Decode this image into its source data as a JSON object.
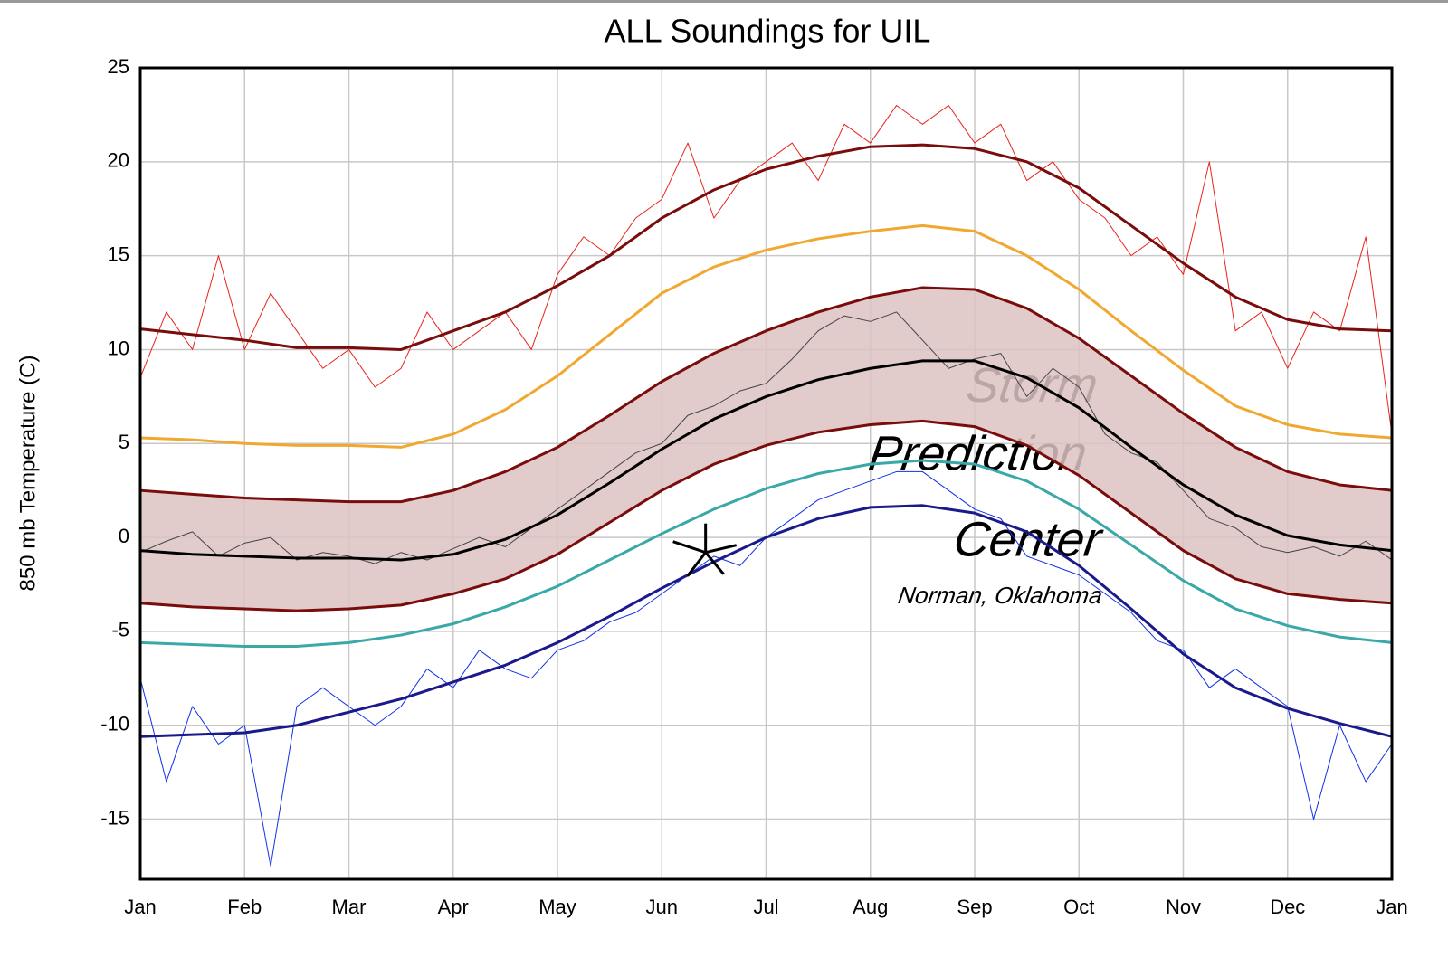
{
  "chart_data": {
    "type": "line",
    "title": "ALL Soundings for UIL",
    "y_label": "850 mb Temperature (C)",
    "xlim": [
      0,
      12
    ],
    "ylim": [
      -18.2,
      25
    ],
    "xticks": [
      {
        "value": 0,
        "label": "Jan"
      },
      {
        "value": 1,
        "label": "Feb"
      },
      {
        "value": 2,
        "label": "Mar"
      },
      {
        "value": 3,
        "label": "Apr"
      },
      {
        "value": 4,
        "label": "May"
      },
      {
        "value": 5,
        "label": "Jun"
      },
      {
        "value": 6,
        "label": "Jul"
      },
      {
        "value": 7,
        "label": "Aug"
      },
      {
        "value": 8,
        "label": "Sep"
      },
      {
        "value": 9,
        "label": "Oct"
      },
      {
        "value": 10,
        "label": "Nov"
      },
      {
        "value": 11,
        "label": "Dec"
      },
      {
        "value": 12,
        "label": "Jan"
      }
    ],
    "yticks": [
      -15,
      -10,
      -5,
      0,
      5,
      10,
      15,
      20,
      25
    ],
    "grid": true,
    "watermark": [
      "Storm",
      "Prediction",
      "Center",
      "Norman, Oklahoma"
    ],
    "band": {
      "fill": "#dcc2c2",
      "color": "#7a0c0c",
      "x": [
        0,
        0.5,
        1,
        1.5,
        2,
        2.5,
        3,
        3.5,
        4,
        4.5,
        5,
        5.5,
        6,
        6.5,
        7,
        7.5,
        8,
        8.5,
        9,
        9.5,
        10,
        10.5,
        11,
        11.5,
        12
      ],
      "upper": [
        2.5,
        2.3,
        2.1,
        2.0,
        1.9,
        1.9,
        2.5,
        3.5,
        4.8,
        6.5,
        8.3,
        9.8,
        11.0,
        12.0,
        12.8,
        13.3,
        13.2,
        12.2,
        10.6,
        8.6,
        6.6,
        4.8,
        3.5,
        2.8,
        2.5
      ],
      "lower": [
        -3.5,
        -3.7,
        -3.8,
        -3.9,
        -3.8,
        -3.6,
        -3.0,
        -2.2,
        -0.9,
        0.8,
        2.5,
        3.9,
        4.9,
        5.6,
        6.0,
        6.2,
        5.9,
        4.9,
        3.3,
        1.3,
        -0.7,
        -2.2,
        -3.0,
        -3.3,
        -3.5
      ]
    },
    "series": [
      {
        "color": "#e8231a",
        "width": 1,
        "x": [
          0,
          0.25,
          0.5,
          0.75,
          1,
          1.25,
          1.5,
          1.75,
          2,
          2.25,
          2.5,
          2.75,
          3,
          3.25,
          3.5,
          3.75,
          4,
          4.25,
          4.5,
          4.75,
          5,
          5.25,
          5.5,
          5.75,
          6,
          6.25,
          6.5,
          6.75,
          7,
          7.25,
          7.5,
          7.75,
          8,
          8.25,
          8.5,
          8.75,
          9,
          9.25,
          9.5,
          9.75,
          10,
          10.25,
          10.5,
          10.75,
          11,
          11.25,
          11.5,
          11.75,
          12
        ],
        "values": [
          8.5,
          12,
          10,
          15,
          10,
          13,
          11,
          9,
          10,
          8,
          9,
          12,
          10,
          11,
          12,
          10,
          14,
          16,
          15,
          17,
          18,
          21,
          17,
          19,
          20,
          21,
          19,
          22,
          21,
          23,
          22,
          23,
          21,
          22,
          19,
          20,
          18,
          17,
          15,
          16,
          14,
          20,
          11,
          12,
          9,
          12,
          11,
          16,
          5.5
        ]
      },
      {
        "color": "#444444",
        "width": 1,
        "x": [
          0,
          0.25,
          0.5,
          0.75,
          1,
          1.25,
          1.5,
          1.75,
          2,
          2.25,
          2.5,
          2.75,
          3,
          3.25,
          3.5,
          3.75,
          4,
          4.25,
          4.5,
          4.75,
          5,
          5.25,
          5.5,
          5.75,
          6,
          6.25,
          6.5,
          6.75,
          7,
          7.25,
          7.5,
          7.75,
          8,
          8.25,
          8.5,
          8.75,
          9,
          9.25,
          9.5,
          9.75,
          10,
          10.25,
          10.5,
          10.75,
          11,
          11.25,
          11.5,
          11.75,
          12
        ],
        "values": [
          -0.8,
          -0.2,
          0.3,
          -1.0,
          -0.3,
          0.0,
          -1.2,
          -0.8,
          -1.0,
          -1.4,
          -0.8,
          -1.2,
          -0.6,
          0.0,
          -0.5,
          0.5,
          1.5,
          2.5,
          3.5,
          4.5,
          5.0,
          6.5,
          7.0,
          7.8,
          8.2,
          9.5,
          11.0,
          11.8,
          11.5,
          12.0,
          10.5,
          9.0,
          9.5,
          9.8,
          7.5,
          9.0,
          8.0,
          5.5,
          4.5,
          4.0,
          2.5,
          1.0,
          0.5,
          -0.5,
          -0.8,
          -0.5,
          -1.0,
          -0.2,
          -1.2
        ]
      },
      {
        "color": "#1030e8",
        "width": 1,
        "x": [
          0,
          0.25,
          0.5,
          0.75,
          1,
          1.25,
          1.5,
          1.75,
          2,
          2.25,
          2.5,
          2.75,
          3,
          3.25,
          3.5,
          3.75,
          4,
          4.25,
          4.5,
          4.75,
          5,
          5.25,
          5.5,
          5.75,
          6,
          6.25,
          6.5,
          6.75,
          7,
          7.25,
          7.5,
          7.75,
          8,
          8.25,
          8.5,
          8.75,
          9,
          9.25,
          9.5,
          9.75,
          10,
          10.25,
          10.5,
          10.75,
          11,
          11.25,
          11.5,
          11.75,
          12
        ],
        "values": [
          -7.5,
          -13,
          -9,
          -11,
          -10,
          -17.5,
          -9,
          -8,
          -9,
          -10,
          -9,
          -7,
          -8,
          -6,
          -7,
          -7.5,
          -6,
          -5.5,
          -4.5,
          -4,
          -3,
          -2,
          -1,
          -1.5,
          0,
          1,
          2,
          2.5,
          3,
          3.5,
          3.5,
          2.5,
          1.5,
          1,
          -1,
          -1.5,
          -2,
          -3,
          -4,
          -5.5,
          -6,
          -8,
          -7,
          -8,
          -9,
          -15,
          -10,
          -13,
          -11
        ]
      },
      {
        "color": "#7a0c0c",
        "width": 3,
        "x": [
          0,
          0.5,
          1,
          1.5,
          2,
          2.5,
          3,
          3.5,
          4,
          4.5,
          5,
          5.5,
          6,
          6.5,
          7,
          7.5,
          8,
          8.5,
          9,
          9.5,
          10,
          10.5,
          11,
          11.5,
          12
        ],
        "values": [
          11.1,
          10.8,
          10.5,
          10.1,
          10.1,
          10.0,
          11.0,
          12.0,
          13.4,
          15.0,
          17.0,
          18.5,
          19.6,
          20.3,
          20.8,
          20.9,
          20.7,
          20.0,
          18.6,
          16.6,
          14.6,
          12.8,
          11.6,
          11.1,
          11.0
        ]
      },
      {
        "color": "#f0a830",
        "width": 3,
        "x": [
          0,
          0.5,
          1,
          1.5,
          2,
          2.5,
          3,
          3.5,
          4,
          4.5,
          5,
          5.5,
          6,
          6.5,
          7,
          7.5,
          8,
          8.5,
          9,
          9.5,
          10,
          10.5,
          11,
          11.5,
          12
        ],
        "values": [
          5.3,
          5.2,
          5.0,
          4.9,
          4.9,
          4.8,
          5.5,
          6.8,
          8.6,
          10.8,
          13.0,
          14.4,
          15.3,
          15.9,
          16.3,
          16.6,
          16.3,
          15.0,
          13.2,
          11.0,
          8.9,
          7.0,
          6.0,
          5.5,
          5.3
        ]
      },
      {
        "color": "#000000",
        "width": 3,
        "x": [
          0,
          0.5,
          1,
          1.5,
          2,
          2.5,
          3,
          3.5,
          4,
          4.5,
          5,
          5.5,
          6,
          6.5,
          7,
          7.5,
          8,
          8.5,
          9,
          9.5,
          10,
          10.5,
          11,
          11.5,
          12
        ],
        "values": [
          -0.7,
          -0.9,
          -1.0,
          -1.1,
          -1.1,
          -1.2,
          -0.9,
          -0.1,
          1.2,
          2.9,
          4.7,
          6.3,
          7.5,
          8.4,
          9.0,
          9.4,
          9.4,
          8.5,
          6.9,
          4.8,
          2.8,
          1.2,
          0.1,
          -0.4,
          -0.7
        ]
      },
      {
        "color": "#3aa8a8",
        "width": 3,
        "x": [
          0,
          0.5,
          1,
          1.5,
          2,
          2.5,
          3,
          3.5,
          4,
          4.5,
          5,
          5.5,
          6,
          6.5,
          7,
          7.5,
          8,
          8.5,
          9,
          9.5,
          10,
          10.5,
          11,
          11.5,
          12
        ],
        "values": [
          -5.6,
          -5.7,
          -5.8,
          -5.8,
          -5.6,
          -5.2,
          -4.6,
          -3.7,
          -2.6,
          -1.2,
          0.2,
          1.5,
          2.6,
          3.4,
          3.9,
          4.1,
          3.9,
          3.0,
          1.5,
          -0.4,
          -2.3,
          -3.8,
          -4.7,
          -5.3,
          -5.6
        ]
      },
      {
        "color": "#1a1a8a",
        "width": 3,
        "x": [
          0,
          0.5,
          1,
          1.5,
          2,
          2.5,
          3,
          3.5,
          4,
          4.5,
          5,
          5.5,
          6,
          6.5,
          7,
          7.5,
          8,
          8.5,
          9,
          9.5,
          10,
          10.5,
          11,
          11.5,
          12
        ],
        "values": [
          -10.6,
          -10.5,
          -10.4,
          -10.0,
          -9.3,
          -8.6,
          -7.7,
          -6.8,
          -5.6,
          -4.2,
          -2.7,
          -1.3,
          0.0,
          1.0,
          1.6,
          1.7,
          1.3,
          0.3,
          -1.5,
          -3.8,
          -6.2,
          -8.0,
          -9.1,
          -9.9,
          -10.6
        ]
      }
    ],
    "marker": {
      "x": 5.42,
      "y": -0.8,
      "color": "#000000"
    }
  }
}
